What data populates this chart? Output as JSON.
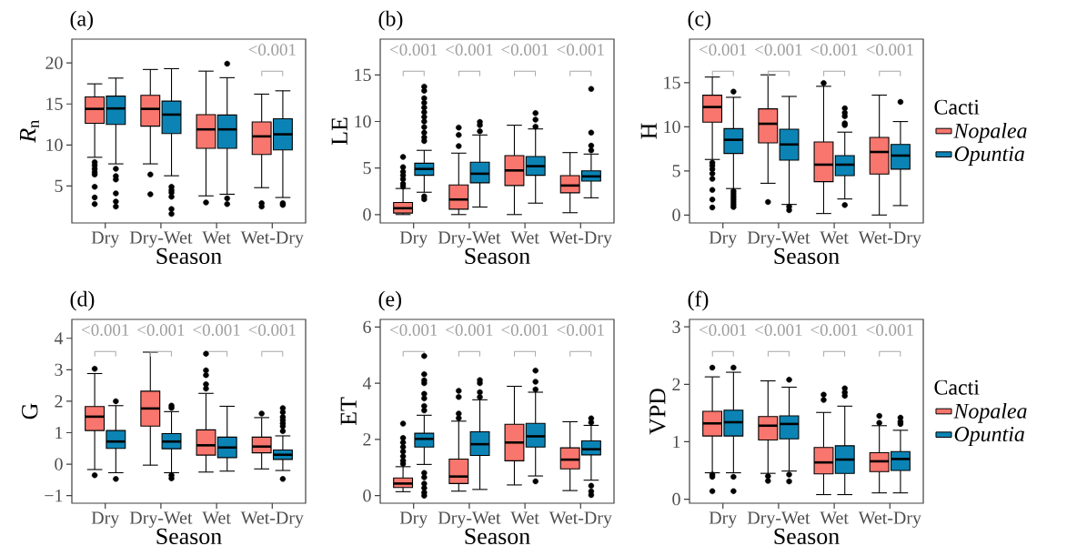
{
  "chart_data": [
    {
      "type": "box",
      "title": "(a)",
      "xlabel": "Season",
      "ylabel": "*R*$_{n}$",
      "categories": [
        "Dry",
        "Dry-Wet",
        "Wet",
        "Wet-Dry"
      ],
      "ylim": [
        0.5,
        22.9
      ],
      "yticks": [
        5,
        10,
        15,
        20
      ],
      "series": [
        {
          "color": "#f8766d",
          "boxes": [
            {
              "low": 8.5,
              "q1": 12.65,
              "median": 14.4,
              "q3": 15.85,
              "high": 17.45,
              "outliers": [
                7.9,
                7.5,
                7.1,
                6.7,
                6.4,
                4.9,
                3.6,
                2.8
              ]
            },
            {
              "low": 7.7,
              "q1": 12.3,
              "median": 14.4,
              "q3": 16.05,
              "high": 19.2,
              "outliers": [
                6.4,
                4.0
              ]
            },
            {
              "low": 3.8,
              "q1": 9.6,
              "median": 11.9,
              "q3": 13.7,
              "high": 19.0,
              "outliers": [
                3.0
              ]
            },
            {
              "low": 4.8,
              "q1": 8.85,
              "median": 11.05,
              "q3": 12.8,
              "high": 16.2,
              "outliers": [
                2.9,
                2.5
              ]
            }
          ]
        },
        {
          "color": "#0b84b5",
          "boxes": [
            {
              "low": 7.7,
              "q1": 12.5,
              "median": 14.45,
              "q3": 15.95,
              "high": 18.15,
              "outliers": [
                7.1,
                6.2,
                5.8,
                4.1,
                3.1,
                2.5
              ]
            },
            {
              "low": 6.25,
              "q1": 11.4,
              "median": 13.7,
              "q3": 15.35,
              "high": 19.3,
              "outliers": [
                4.9,
                4.5,
                4.2,
                3.7,
                2.2,
                1.6
              ]
            },
            {
              "low": 4.0,
              "q1": 9.6,
              "median": 11.9,
              "q3": 13.65,
              "high": 18.2,
              "outliers": [
                19.9,
                3.5,
                2.8
              ]
            },
            {
              "low": 3.6,
              "q1": 9.4,
              "median": 11.3,
              "q3": 13.2,
              "high": 16.6,
              "outliers": [
                2.9,
                2.7
              ]
            }
          ]
        }
      ],
      "annotations": [
        "<0.001"
      ]
    },
    {
      "type": "box",
      "title": "(b)",
      "xlabel": "Season",
      "ylabel": "LE",
      "categories": [
        "Dry",
        "Dry-Wet",
        "Wet",
        "Wet-Dry"
      ],
      "ylim": [
        -0.9,
        18.85
      ],
      "yticks": [
        0,
        5,
        10,
        15
      ],
      "series": [
        {
          "color": "#f8766d",
          "boxes": [
            {
              "low": 0,
              "q1": 0.16,
              "median": 0.68,
              "q3": 1.3,
              "high": 2.8,
              "outliers": [
                6.2,
                5.1,
                4.6,
                4.2,
                3.8,
                3.3,
                3.0
              ]
            },
            {
              "low": 0,
              "q1": 0.58,
              "median": 1.62,
              "q3": 3.18,
              "high": 6.6,
              "outliers": [
                9.35,
                8.55,
                7.35
              ]
            },
            {
              "low": 0,
              "q1": 3.12,
              "median": 4.74,
              "q3": 6.34,
              "high": 9.6
            },
            {
              "low": 0.2,
              "q1": 2.34,
              "median": 3.12,
              "q3": 4.19,
              "high": 6.66
            }
          ]
        },
        {
          "color": "#0b84b5",
          "boxes": [
            {
              "low": 2.4,
              "q1": 4.22,
              "median": 4.9,
              "q3": 5.52,
              "high": 6.9,
              "outliers": [
                13.75,
                13.3,
                12.5,
                12.0,
                11.5,
                11.0,
                10.5,
                10.0,
                9.4,
                8.8,
                8.3,
                7.9,
                1.95,
                1.65
              ]
            },
            {
              "low": 0.81,
              "q1": 3.41,
              "median": 4.39,
              "q3": 5.62,
              "high": 8.55,
              "outliers": [
                9.95,
                9.6,
                8.95
              ]
            },
            {
              "low": 1.23,
              "q1": 4.22,
              "median": 5.2,
              "q3": 6.24,
              "high": 9.2,
              "outliers": [
                10.9,
                10.2,
                9.45
              ]
            },
            {
              "low": 1.8,
              "q1": 3.6,
              "median": 4.1,
              "q3": 4.7,
              "high": 6.5,
              "outliers": [
                13.5,
                8.8,
                7.4,
                6.9
              ]
            }
          ]
        }
      ],
      "annotations": [
        "<0.001",
        "<0.001",
        "<0.001",
        "<0.001"
      ]
    },
    {
      "type": "box",
      "title": "(c)",
      "xlabel": "Season",
      "ylabel": "H",
      "categories": [
        "Dry",
        "Dry-Wet",
        "Wet",
        "Wet-Dry"
      ],
      "ylim": [
        -0.9,
        19.95
      ],
      "yticks": [
        0,
        5,
        10,
        15
      ],
      "legend": "right",
      "legend_title": "Cacti",
      "series": [
        {
          "name": "Nopalea",
          "color": "#f8766d",
          "boxes": [
            {
              "low": 6.3,
              "q1": 10.53,
              "median": 12.25,
              "q3": 13.59,
              "high": 15.65,
              "outliers": [
                5.95,
                5.6,
                5.2,
                4.7,
                4.1,
                2.85,
                1.75,
                0.85
              ]
            },
            {
              "low": 3.6,
              "q1": 8.19,
              "median": 10.35,
              "q3": 12.04,
              "high": 15.9,
              "outliers": [
                1.48
              ]
            },
            {
              "low": 0.17,
              "q1": 3.78,
              "median": 5.71,
              "q3": 8.29,
              "high": 14.6,
              "outliers": [
                14.96
              ]
            },
            {
              "low": 0,
              "q1": 4.64,
              "median": 7.15,
              "q3": 8.8,
              "high": 13.6
            }
          ]
        },
        {
          "name": "Opuntia",
          "color": "#0b84b5",
          "boxes": [
            {
              "low": 3.0,
              "q1": 6.98,
              "median": 8.53,
              "q3": 9.8,
              "high": 13.35,
              "outliers": [
                14.0,
                2.7,
                2.4,
                2.1,
                1.8,
                1.5,
                1.2,
                0.9
              ]
            },
            {
              "low": 1.2,
              "q1": 6.22,
              "median": 8.0,
              "q3": 9.73,
              "high": 13.45,
              "outliers": [
                0.95,
                0.55
              ]
            },
            {
              "low": 1.82,
              "q1": 4.47,
              "median": 5.71,
              "q3": 6.74,
              "high": 9.4,
              "outliers": [
                12.1,
                11.6,
                11.2,
                10.4,
                10.2,
                1.13
              ]
            },
            {
              "low": 1.07,
              "q1": 5.2,
              "median": 6.74,
              "q3": 8.0,
              "high": 10.6,
              "outliers": [
                12.83
              ]
            }
          ]
        }
      ],
      "annotations": [
        "<0.001",
        "<0.001",
        "<0.001",
        "<0.001"
      ]
    },
    {
      "type": "box",
      "title": "(d)",
      "xlabel": "Season",
      "ylabel": "G",
      "categories": [
        "Dry",
        "Dry-Wet",
        "Wet",
        "Wet-Dry"
      ],
      "ylim": [
        -1.24,
        4.6
      ],
      "yticks": [
        {
          "value": -1,
          "label": "−1"
        },
        0,
        1,
        2,
        3,
        4
      ],
      "series": [
        {
          "color": "#f8766d",
          "boxes": [
            {
              "low": -0.17,
              "q1": 1.07,
              "median": 1.51,
              "q3": 1.83,
              "high": 2.88,
              "outliers": [
                3.03,
                -0.35
              ]
            },
            {
              "low": -0.03,
              "q1": 1.21,
              "median": 1.77,
              "q3": 2.32,
              "high": 3.56
            },
            {
              "low": -0.25,
              "q1": 0.29,
              "median": 0.6,
              "q3": 1.09,
              "high": 2.25,
              "outliers": [
                3.51,
                2.98,
                2.83,
                2.54,
                2.4
              ]
            },
            {
              "low": -0.15,
              "q1": 0.36,
              "median": 0.56,
              "q3": 0.86,
              "high": 1.48,
              "outliers": [
                1.61
              ]
            }
          ]
        },
        {
          "color": "#0b84b5",
          "boxes": [
            {
              "low": -0.27,
              "q1": 0.5,
              "median": 0.72,
              "q3": 1.07,
              "high": 1.86,
              "outliers": [
                2.0,
                -0.47
              ]
            },
            {
              "low": -0.27,
              "q1": 0.49,
              "median": 0.72,
              "q3": 0.97,
              "high": 1.67,
              "outliers": [
                1.86,
                1.79,
                -0.35,
                -0.45
              ]
            },
            {
              "low": -0.22,
              "q1": 0.21,
              "median": 0.53,
              "q3": 0.86,
              "high": 1.84
            },
            {
              "low": -0.2,
              "q1": 0.15,
              "median": 0.3,
              "q3": 0.45,
              "high": 0.9,
              "outliers": [
                1.78,
                1.65,
                1.5,
                1.4,
                1.3,
                1.2,
                1.05,
                -0.47
              ]
            }
          ]
        }
      ],
      "annotations": [
        "<0.001",
        "<0.001",
        "<0.001",
        "<0.001"
      ]
    },
    {
      "type": "box",
      "title": "(e)",
      "xlabel": "Season",
      "ylabel": "ET",
      "categories": [
        "Dry",
        "Dry-Wet",
        "Wet",
        "Wet-Dry"
      ],
      "ylim": [
        -0.27,
        6.27
      ],
      "yticks": [
        0,
        2,
        4,
        6
      ],
      "series": [
        {
          "color": "#f8766d",
          "boxes": [
            {
              "low": 0.14,
              "q1": 0.29,
              "median": 0.43,
              "q3": 0.63,
              "high": 1.03,
              "outliers": [
                2.56,
                2.05,
                1.89,
                1.73,
                1.57,
                1.4,
                1.24,
                1.13
              ]
            },
            {
              "low": 0.16,
              "q1": 0.43,
              "median": 0.68,
              "q3": 1.3,
              "high": 2.65,
              "outliers": [
                3.73,
                3.51,
                2.92,
                2.76
              ]
            },
            {
              "low": 0.38,
              "q1": 1.24,
              "median": 1.89,
              "q3": 2.54,
              "high": 3.89
            },
            {
              "low": 0.18,
              "q1": 0.95,
              "median": 1.28,
              "q3": 1.7,
              "high": 2.63
            }
          ]
        },
        {
          "color": "#0b84b5",
          "boxes": [
            {
              "low": 1.11,
              "q1": 1.73,
              "median": 2.02,
              "q3": 2.22,
              "high": 2.86,
              "outliers": [
                4.97,
                4.32,
                4.1,
                4.0,
                3.62,
                3.46,
                3.19,
                3.03,
                0.81,
                0.65,
                0.43,
                0.27,
                0.11,
                0.0
              ]
            },
            {
              "low": 0.22,
              "q1": 1.43,
              "median": 1.83,
              "q3": 2.27,
              "high": 3.41,
              "outliers": [
                4.11,
                4.0,
                3.68,
                3.51
              ]
            },
            {
              "low": 0.7,
              "q1": 1.73,
              "median": 2.11,
              "q3": 2.57,
              "high": 3.68,
              "outliers": [
                4.45,
                4.05,
                3.78,
                0.51
              ]
            },
            {
              "low": 0.55,
              "q1": 1.45,
              "median": 1.65,
              "q3": 1.95,
              "high": 2.5,
              "outliers": [
                2.75,
                2.6,
                0.35,
                0.15,
                0.02
              ]
            }
          ]
        }
      ],
      "annotations": [
        "<0.001",
        "<0.001",
        "<0.001",
        "<0.001"
      ]
    },
    {
      "type": "box",
      "title": "(f)",
      "xlabel": "Season",
      "ylabel": "VPD",
      "categories": [
        "Dry",
        "Dry-Wet",
        "Wet",
        "Wet-Dry"
      ],
      "ylim": [
        -0.07,
        3.13
      ],
      "yticks": [
        0,
        1,
        2,
        3
      ],
      "legend": "right",
      "legend_title": "Cacti",
      "series": [
        {
          "name": "Nopalea",
          "color": "#f8766d",
          "boxes": [
            {
              "low": 0.46,
              "q1": 1.1,
              "median": 1.32,
              "q3": 1.53,
              "high": 2.13,
              "outliers": [
                2.29,
                0.43,
                0.39,
                0.14
              ]
            },
            {
              "low": 0.45,
              "q1": 1.03,
              "median": 1.28,
              "q3": 1.44,
              "high": 2.06,
              "outliers": [
                0.4,
                0.32
              ]
            },
            {
              "low": 0.08,
              "q1": 0.44,
              "median": 0.64,
              "q3": 0.9,
              "high": 1.51,
              "outliers": [
                1.82,
                1.73
              ]
            },
            {
              "low": 0.11,
              "q1": 0.48,
              "median": 0.66,
              "q3": 0.81,
              "high": 1.28,
              "outliers": [
                1.45,
                1.33
              ]
            }
          ]
        },
        {
          "name": "Opuntia",
          "color": "#0b84b5",
          "boxes": [
            {
              "low": 0.46,
              "q1": 1.1,
              "median": 1.34,
              "q3": 1.55,
              "high": 2.21,
              "outliers": [
                2.29,
                0.39,
                0.14
              ]
            },
            {
              "low": 0.49,
              "q1": 1.05,
              "median": 1.31,
              "q3": 1.45,
              "high": 1.95,
              "outliers": [
                2.08,
                0.43,
                0.31
              ]
            },
            {
              "low": 0.08,
              "q1": 0.45,
              "median": 0.69,
              "q3": 0.93,
              "high": 1.62,
              "outliers": [
                1.93,
                1.86,
                1.8
              ]
            },
            {
              "low": 0.11,
              "q1": 0.5,
              "median": 0.7,
              "q3": 0.83,
              "high": 1.2,
              "outliers": [
                1.42,
                1.35,
                1.31
              ]
            }
          ]
        }
      ],
      "annotations": [
        "<0.001",
        "<0.001",
        "<0.001",
        "<0.001"
      ]
    }
  ]
}
